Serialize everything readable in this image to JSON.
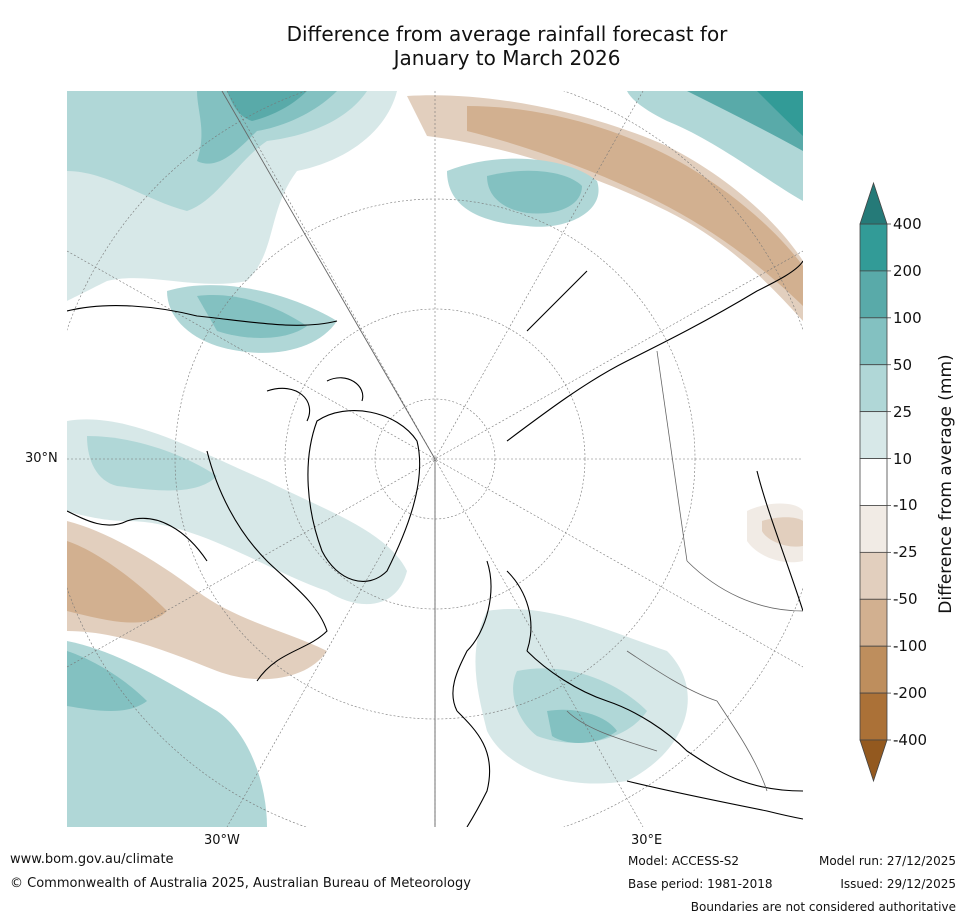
{
  "title_line1": "Difference from average rainfall forecast for",
  "title_line2": "January to March 2026",
  "labels": {
    "lat30n": "30°N",
    "lon30w": "30°W",
    "lon30e": "30°E"
  },
  "colorbar": {
    "title": "Difference from average (mm)",
    "ticks": [
      "400",
      "200",
      "100",
      "50",
      "25",
      "10",
      "-10",
      "-25",
      "-50",
      "-100",
      "-200",
      "-400"
    ],
    "colors": {
      "above_400": "#257a78",
      "c200_400": "#329b97",
      "c100_200": "#59aaa9",
      "c50_100": "#83c1c1",
      "c25_50": "#b0d7d7",
      "c10_25": "#d7e8e8",
      "neutral": "#ffffff",
      "cm10_m25": "#f1ebe5",
      "cm25_m50": "#e2cfbe",
      "cm50_m100": "#d2b090",
      "cm100_m200": "#be8e5d",
      "cm200_m400": "#ab7137",
      "below_m400": "#93591f"
    }
  },
  "footer": {
    "url": "www.bom.gov.au/climate",
    "copyright": "© Commonwealth of Australia 2025, Australian Bureau of Meteorology",
    "model": "Model: ACCESS-S2",
    "base_period": "Base period: 1981-2018",
    "model_run": "Model run: 27/12/2025",
    "issued": "Issued: 29/12/2025",
    "boundaries": "Boundaries are not considered authoritative"
  }
}
